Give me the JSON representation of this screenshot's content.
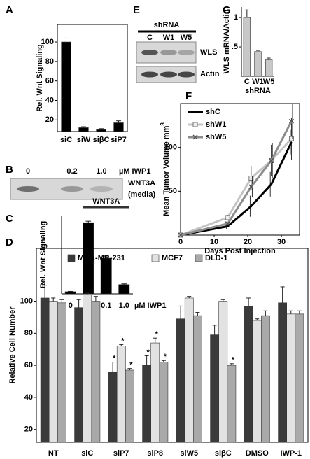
{
  "chart_data": [
    {
      "panel": "A",
      "type": "bar",
      "y_label": "Rel. Wnt Signaling",
      "categories": [
        "siC",
        "siW",
        "siβC",
        "siP7"
      ],
      "values": [
        100,
        12,
        10,
        17
      ],
      "errors": [
        4,
        1,
        1,
        2
      ],
      "color": "#000000",
      "ylim": [
        8,
        118
      ],
      "yticks": [
        20,
        40,
        60,
        80,
        100
      ]
    },
    {
      "panel": "B",
      "type": "blot",
      "lane_labels": [
        "0",
        "0.2",
        "1.0"
      ],
      "unit": "µM IWP1",
      "band_labels": [
        "WNT3A",
        "(media)"
      ]
    },
    {
      "panel": "C",
      "type": "bar",
      "y_label": "Rel. Wnt Signaling",
      "categories": [
        "0",
        "0",
        "0.1",
        "1.0"
      ],
      "x_unit": "µM IWP1",
      "bracket": "WNT3A",
      "values": [
        3,
        100,
        50,
        13
      ],
      "errors": [
        0.5,
        2,
        3,
        1
      ],
      "color": "#000000",
      "ylim": [
        0,
        110
      ]
    },
    {
      "panel": "D",
      "type": "bar",
      "y_label": "Relative Cell Number",
      "categories": [
        "NT",
        "siC",
        "siP7",
        "siP8",
        "siW5",
        "siβC",
        "DMSO",
        "IWP-1"
      ],
      "series": [
        {
          "name": "MDA-MB-231",
          "color": "#3a3a3a",
          "values": [
            102,
            96,
            56,
            60,
            89,
            79,
            97,
            99
          ],
          "errors": [
            8,
            5,
            6,
            6,
            8,
            6,
            5,
            10
          ],
          "marks": [
            null,
            null,
            "*",
            "*",
            null,
            null,
            null,
            null
          ]
        },
        {
          "name": "MCF7",
          "color": "#e2e2e2",
          "values": [
            100,
            104,
            72,
            74,
            102,
            100,
            88,
            92
          ],
          "errors": [
            2,
            1,
            1,
            3,
            1,
            1,
            1,
            2
          ],
          "marks": [
            null,
            null,
            "*",
            "*",
            null,
            null,
            null,
            null
          ]
        },
        {
          "name": "DLD-1",
          "color": "#a9a9a9",
          "values": [
            99,
            100,
            57,
            62,
            91,
            60,
            91,
            92
          ],
          "errors": [
            2,
            3,
            1,
            1,
            2,
            1,
            3,
            2
          ],
          "marks": [
            null,
            null,
            "*",
            "*",
            null,
            "*",
            null,
            null
          ]
        }
      ],
      "ylim": [
        12,
        133
      ],
      "yticks": [
        20,
        40,
        60,
        80,
        100
      ]
    },
    {
      "panel": "E",
      "type": "blot",
      "header": "shRNA",
      "lane_labels": [
        "C",
        "W1",
        "W5"
      ],
      "band_labels": [
        "WLS",
        "Actin"
      ]
    },
    {
      "panel": "F",
      "type": "line",
      "y_label": "Mean Tumor Volume mm",
      "y_label_sup": "3",
      "x_label": "Days Post Injection",
      "x": [
        0,
        14,
        21,
        27,
        33
      ],
      "series": [
        {
          "name": "shC",
          "color": "#000000",
          "values": [
            0,
            10,
            33,
            58,
            106
          ],
          "errors": [
            0,
            3,
            12,
            14,
            14
          ]
        },
        {
          "name": "shW1",
          "color": "#c4c4c4",
          "values": [
            0,
            20,
            65,
            85,
            110
          ],
          "errors": [
            0,
            3,
            14,
            18,
            24
          ]
        },
        {
          "name": "shW5",
          "color": "#8c8c8c",
          "values": [
            0,
            13,
            55,
            85,
            130
          ],
          "errors": [
            0,
            3,
            12,
            20,
            20
          ]
        }
      ],
      "xlim": [
        0,
        35.4
      ],
      "xticks": [
        0,
        10,
        20,
        30
      ],
      "ylim": [
        0,
        150
      ],
      "yticks": [
        50,
        100
      ]
    },
    {
      "panel": "G",
      "type": "bar",
      "y_label": "WLS mRNA/Actin",
      "x_label": "shRNA",
      "categories": [
        "C",
        "W1",
        "W5"
      ],
      "values": [
        1.0,
        0.42,
        0.28
      ],
      "errors": [
        0.13,
        0.02,
        0.03
      ],
      "color": "#c8c8c8",
      "ylim": [
        0,
        1.18
      ],
      "yticks": [
        {
          "value": 0.5,
          "label": ".5"
        },
        1
      ]
    }
  ]
}
